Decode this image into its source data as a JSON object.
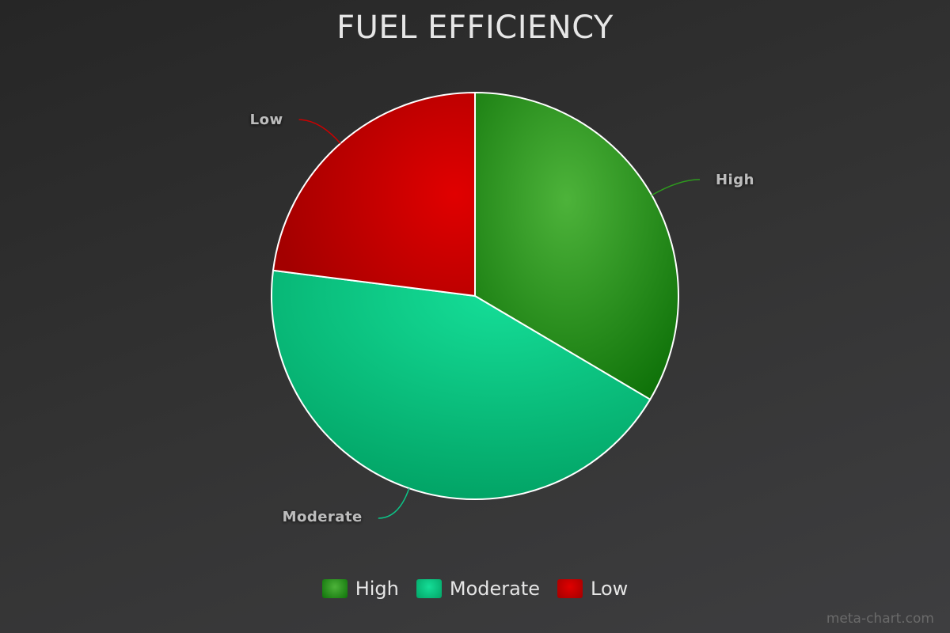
{
  "chart_data": {
    "type": "pie",
    "title": "FUEL EFFICIENCY",
    "slices": [
      {
        "label": "High",
        "value": 33.5,
        "color": "#2e9a1e"
      },
      {
        "label": "Moderate",
        "value": 43.5,
        "color": "#0cc487"
      },
      {
        "label": "Low",
        "value": 23.0,
        "color": "#cc0000"
      }
    ],
    "legend_position": "bottom"
  },
  "legend": {
    "items": [
      {
        "label": "High",
        "color": "#2e9a1e"
      },
      {
        "label": "Moderate",
        "color": "#0cc487"
      },
      {
        "label": "Low",
        "color": "#cc0000"
      }
    ]
  },
  "credit": "meta-chart.com"
}
